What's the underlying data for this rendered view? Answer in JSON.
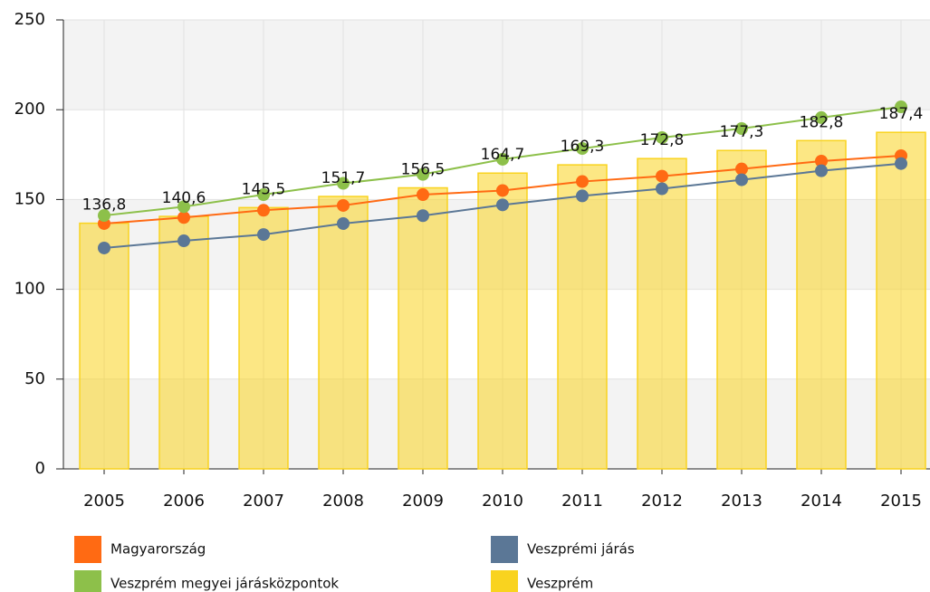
{
  "chart_data": {
    "type": "bar-line",
    "categories": [
      "2005",
      "2006",
      "2007",
      "2008",
      "2009",
      "2010",
      "2011",
      "2012",
      "2013",
      "2014",
      "2015"
    ],
    "series": [
      {
        "name": "Magyarország",
        "color": "#ff6a13",
        "type": "line",
        "values": [
          136.6,
          140,
          144,
          146.7,
          152.7,
          155,
          160,
          163,
          167,
          171.4,
          174.4
        ]
      },
      {
        "name": "Veszprémi járás",
        "color": "#5b7796",
        "type": "line",
        "values": [
          123,
          127,
          130.5,
          136.6,
          141,
          147,
          152,
          156,
          161,
          166,
          170
        ]
      },
      {
        "name": "Veszprém megyei járásközpontok",
        "color": "#8dc04a",
        "type": "line",
        "values": [
          141.1,
          146,
          152.7,
          159,
          164,
          172.4,
          178.4,
          184.5,
          189.5,
          195.6,
          201.6
        ]
      },
      {
        "name": "Veszprém",
        "color": "#f9d31f",
        "type": "bar",
        "values": [
          136.8,
          140.6,
          145.5,
          151.7,
          156.5,
          164.7,
          169.3,
          172.8,
          177.3,
          182.8,
          187.4
        ],
        "value_labels": [
          "136,8",
          "140,6",
          "145,5",
          "151,7",
          "156,5",
          "164,7",
          "169,3",
          "172,8",
          "177,3",
          "182,8",
          "187,4"
        ]
      }
    ],
    "ylim": [
      0,
      250
    ],
    "yticks": [
      0,
      50,
      100,
      150,
      200,
      250
    ],
    "grid": true
  }
}
